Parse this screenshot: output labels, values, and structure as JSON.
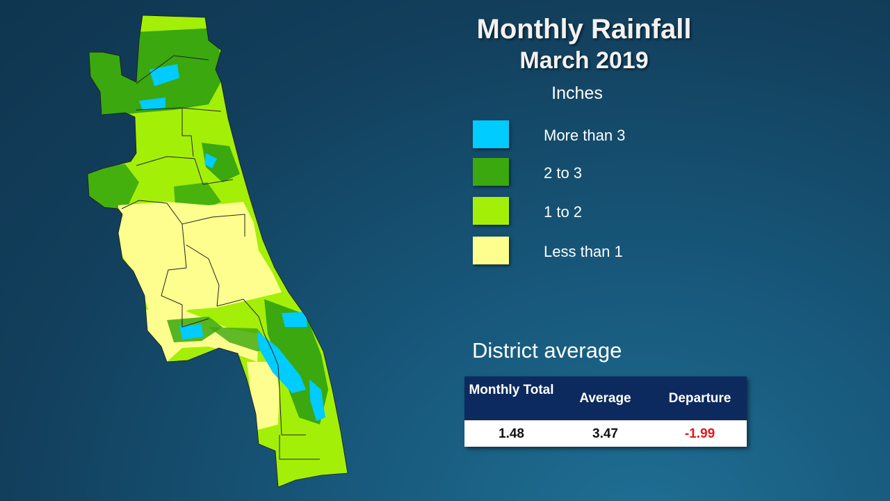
{
  "title": {
    "main": "Monthly Rainfall",
    "sub": "March 2019"
  },
  "legend": {
    "units_label": "Inches",
    "items": [
      {
        "label": "More than 3",
        "color": "#00ccff"
      },
      {
        "label": "2 to 3",
        "color": "#3aa80e"
      },
      {
        "label": "1 to 2",
        "color": "#a4ef08"
      },
      {
        "label": "Less than 1",
        "color": "#fefe8e"
      }
    ]
  },
  "district_average": {
    "heading": "District average",
    "columns": [
      "Monthly Total",
      "Average",
      "Departure"
    ],
    "values": [
      "1.48",
      "3.47",
      "-1.99"
    ],
    "departure_color": "#e8141c"
  },
  "map": {
    "outline_color": "#222222"
  }
}
